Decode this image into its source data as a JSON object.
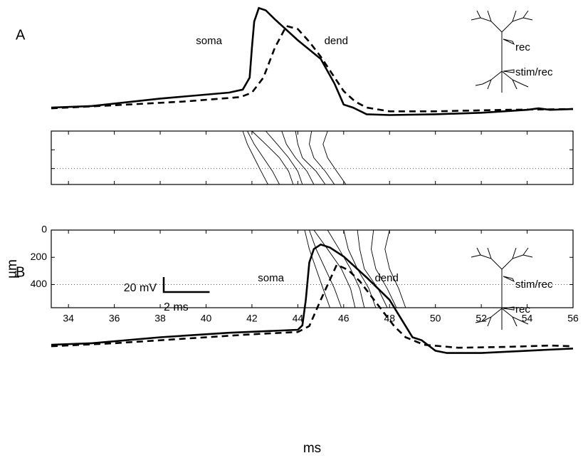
{
  "chart_data": [
    {
      "type": "line",
      "panel": "A",
      "xlim": [
        33.25,
        56
      ],
      "ylim": [
        -20,
        140
      ],
      "electrode_labels": [
        "rec",
        "stim/rec"
      ],
      "series": [
        {
          "name": "soma",
          "color": "#000000",
          "style": "solid",
          "x": [
            33.25,
            35,
            38,
            41,
            41.6,
            41.9,
            42.0,
            42.1,
            42.3,
            42.6,
            43,
            44,
            45,
            45.6,
            46,
            46.4,
            47,
            48,
            50,
            52,
            54,
            54.5,
            55,
            56
          ],
          "values": [
            0,
            2,
            12,
            20,
            24,
            40,
            80,
            115,
            133,
            130,
            118,
            90,
            65,
            32,
            4,
            0,
            -9,
            -10,
            -9,
            -7,
            -3,
            -1,
            -3,
            -2
          ]
        },
        {
          "name": "dend",
          "color": "#000000",
          "style": "dashed",
          "x": [
            33.25,
            36,
            39,
            41.5,
            42,
            42.5,
            43,
            43.5,
            44,
            44.5,
            45,
            45.5,
            46,
            46.5,
            47,
            48,
            50,
            53,
            56
          ],
          "values": [
            -1,
            3,
            8,
            14,
            20,
            40,
            80,
            109,
            105,
            88,
            68,
            45,
            22,
            8,
            0,
            -5,
            -5,
            -3,
            -2
          ]
        }
      ]
    },
    {
      "type": "contour",
      "xlim": [
        33.25,
        56
      ],
      "ylim": [
        0,
        570
      ],
      "invert_y": true,
      "reference_line": 400,
      "depths": [
        0,
        140,
        285,
        430,
        570
      ],
      "contours": [
        [
          41.6,
          41.8,
          42.1,
          42.4,
          42.7
        ],
        [
          41.8,
          42.1,
          42.5,
          42.9,
          43.2
        ],
        [
          42.0,
          42.6,
          43.2,
          43.6,
          43.8
        ],
        [
          42.6,
          43.1,
          43.6,
          44.0,
          44.2
        ],
        [
          43.3,
          43.5,
          43.9,
          44.4,
          44.7
        ],
        [
          43.9,
          44.0,
          44.2,
          44.8,
          45.2
        ],
        [
          44.6,
          44.5,
          44.7,
          45.2,
          45.6
        ],
        [
          45.3,
          45.1,
          45.3,
          45.7,
          46.1
        ]
      ]
    },
    {
      "type": "line",
      "panel": "B",
      "xlim": [
        33.25,
        56
      ],
      "ylim": [
        -20,
        140
      ],
      "electrode_labels": [
        "stim/rec",
        "rec"
      ],
      "scale_bar": {
        "y_value": 20,
        "y_label": "20 mV",
        "x_value": 2,
        "x_label": "2 ms"
      },
      "series": [
        {
          "name": "soma",
          "color": "#000000",
          "style": "solid",
          "x": [
            33.25,
            35,
            38,
            41,
            44,
            44.2,
            44.35,
            44.5,
            44.7,
            45.0,
            45.4,
            46,
            47,
            48,
            48.5,
            49,
            49.4,
            50,
            50.5,
            52,
            54,
            56
          ],
          "values": [
            0,
            2,
            10,
            16,
            20,
            26,
            60,
            110,
            128,
            134,
            130,
            118,
            90,
            60,
            35,
            10,
            6,
            -8,
            -11,
            -11,
            -8,
            -5
          ]
        },
        {
          "name": "dend",
          "color": "#000000",
          "style": "dashed",
          "x": [
            33.25,
            36,
            39,
            42,
            44,
            44.5,
            45,
            45.7,
            46.2,
            46.7,
            47.2,
            47.7,
            48.2,
            48.7,
            49.5,
            51,
            53,
            55,
            56
          ],
          "values": [
            -2,
            2,
            8,
            14,
            17,
            25,
            60,
            107,
            100,
            85,
            65,
            45,
            25,
            10,
            0,
            -4,
            -3,
            -1,
            -2
          ]
        }
      ]
    },
    {
      "type": "contour",
      "xlim": [
        33.25,
        56
      ],
      "ylim": [
        0,
        570
      ],
      "invert_y": true,
      "reference_line": 400,
      "xticks": [
        34,
        36,
        38,
        40,
        42,
        44,
        46,
        48,
        50,
        52,
        54,
        56
      ],
      "yticks": [
        0,
        200,
        400
      ],
      "xlabel": "ms",
      "ylabel": "µm",
      "depths": [
        0,
        140,
        285,
        430,
        570
      ],
      "contours": [
        [
          44.3,
          44.5,
          44.8,
          45.1,
          45.4
        ],
        [
          44.5,
          44.8,
          45.2,
          45.6,
          45.9
        ],
        [
          44.7,
          45.3,
          45.9,
          46.3,
          46.5
        ],
        [
          45.3,
          45.8,
          46.3,
          46.7,
          46.9
        ],
        [
          46.0,
          46.2,
          46.6,
          47.1,
          47.4
        ],
        [
          46.6,
          46.7,
          46.9,
          47.5,
          47.9
        ],
        [
          47.3,
          47.2,
          47.4,
          47.9,
          48.3
        ],
        [
          48.0,
          47.8,
          48.0,
          48.4,
          48.7
        ]
      ]
    }
  ]
}
